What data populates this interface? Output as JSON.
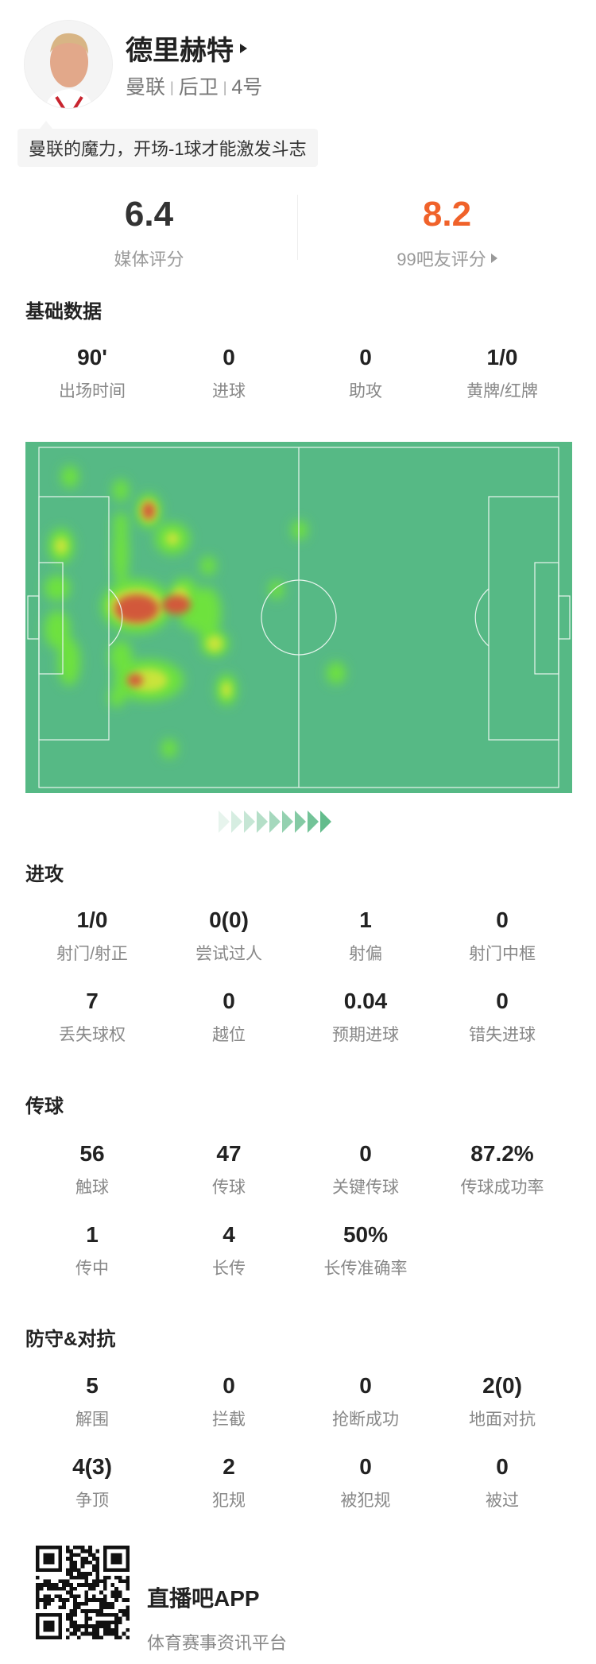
{
  "player": {
    "name": "德里赫特",
    "team": "曼联",
    "position": "后卫",
    "number": "4号",
    "quote": "曼联的魔力，开场-1球才能激发斗志"
  },
  "ratings": {
    "media": {
      "value": "6.4",
      "label": "媒体评分",
      "color": "#333333"
    },
    "fans": {
      "value": "8.2",
      "label": "99吧友评分",
      "color": "#f0622a"
    }
  },
  "basic": {
    "title": "基础数据",
    "stats": [
      {
        "v": "90'",
        "l": "出场时间"
      },
      {
        "v": "0",
        "l": "进球"
      },
      {
        "v": "0",
        "l": "助攻"
      },
      {
        "v": "1/0",
        "l": "黄牌/红牌"
      }
    ]
  },
  "heatmap": {
    "pitch_color": "#56b985",
    "line_color": "#e8f5ee"
  },
  "attack": {
    "title": "进攻",
    "stats": [
      {
        "v": "1/0",
        "l": "射门/射正"
      },
      {
        "v": "0(0)",
        "l": "尝试过人"
      },
      {
        "v": "1",
        "l": "射偏"
      },
      {
        "v": "0",
        "l": "射门中框"
      },
      {
        "v": "7",
        "l": "丢失球权"
      },
      {
        "v": "0",
        "l": "越位"
      },
      {
        "v": "0.04",
        "l": "预期进球"
      },
      {
        "v": "0",
        "l": "错失进球"
      }
    ]
  },
  "passing": {
    "title": "传球",
    "stats": [
      {
        "v": "56",
        "l": "触球"
      },
      {
        "v": "47",
        "l": "传球"
      },
      {
        "v": "0",
        "l": "关键传球"
      },
      {
        "v": "87.2%",
        "l": "传球成功率"
      },
      {
        "v": "1",
        "l": "传中"
      },
      {
        "v": "4",
        "l": "长传"
      },
      {
        "v": "50%",
        "l": "长传准确率"
      }
    ]
  },
  "defense": {
    "title": "防守&对抗",
    "stats": [
      {
        "v": "5",
        "l": "解围"
      },
      {
        "v": "0",
        "l": "拦截"
      },
      {
        "v": "0",
        "l": "抢断成功"
      },
      {
        "v": "2(0)",
        "l": "地面对抗"
      },
      {
        "v": "4(3)",
        "l": "争顶"
      },
      {
        "v": "2",
        "l": "犯规"
      },
      {
        "v": "0",
        "l": "被犯规"
      },
      {
        "v": "0",
        "l": "被过"
      }
    ]
  },
  "footer": {
    "app": "直播吧APP",
    "tagline": "体育赛事资讯平台"
  }
}
